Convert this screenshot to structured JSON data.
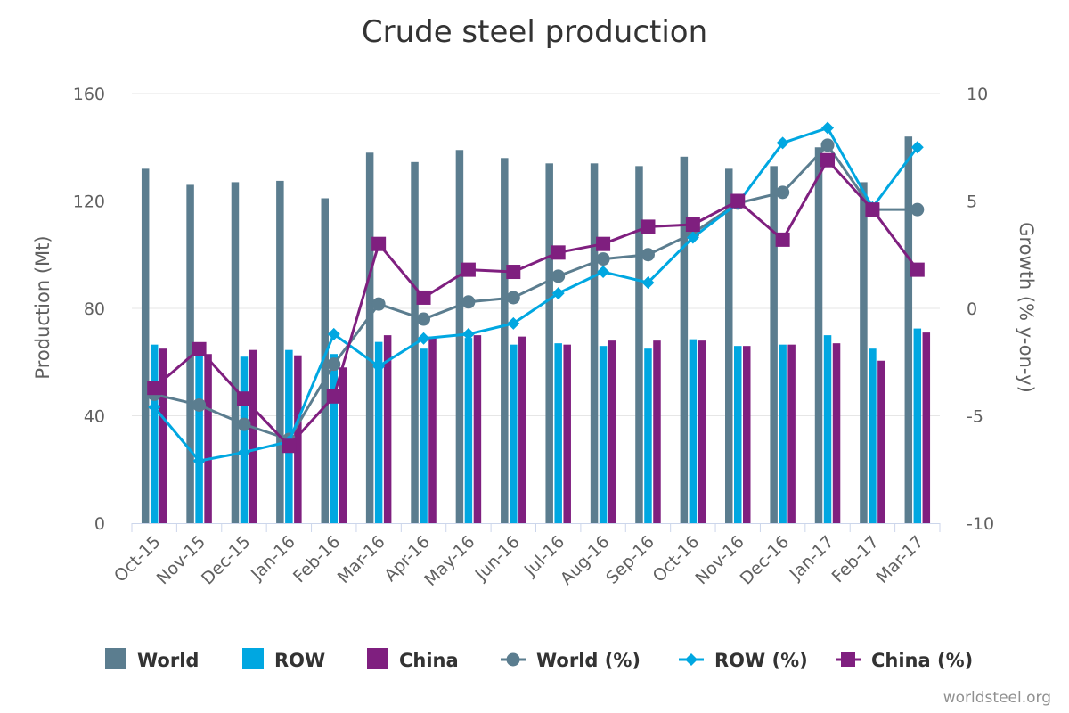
{
  "chart_data": {
    "type": "bar",
    "title": "Crude steel production",
    "categories": [
      "Oct-15",
      "Nov-15",
      "Dec-15",
      "Jan-16",
      "Feb-16",
      "Mar-16",
      "Apr-16",
      "May-16",
      "Jun-16",
      "Jul-16",
      "Aug-16",
      "Sep-16",
      "Oct-16",
      "Nov-16",
      "Dec-16",
      "Jan-17",
      "Feb-17",
      "Mar-17"
    ],
    "ylabel": "Production (Mt)",
    "ylim": [
      0,
      160
    ],
    "yticks": [
      0,
      40,
      80,
      120,
      160
    ],
    "y2label": "Growth (% y-on-y)",
    "y2lim": [
      -10,
      10
    ],
    "y2ticks": [
      -10,
      -5,
      0,
      5,
      10
    ],
    "grid": true,
    "legend_position": "bottom",
    "bar_series": [
      {
        "name": "World",
        "color": "#5b7d8f",
        "values": [
          132,
          126,
          127,
          127.5,
          121,
          138,
          134.5,
          139,
          136,
          134,
          134,
          133,
          136.5,
          132,
          133,
          140,
          127,
          144
        ]
      },
      {
        "name": "ROW",
        "color": "#00a7e1",
        "values": [
          66.5,
          63,
          62,
          64.5,
          63,
          67.5,
          65,
          69,
          66.5,
          67,
          66,
          65,
          68.5,
          66,
          66.5,
          70,
          65,
          72.5
        ]
      },
      {
        "name": "China",
        "color": "#7f1f7f",
        "values": [
          65,
          63,
          64.5,
          62.5,
          58,
          70,
          69.5,
          70,
          69.5,
          66.5,
          68,
          68,
          68,
          66,
          66.5,
          67,
          60.5,
          71
        ]
      }
    ],
    "line_series": [
      {
        "name": "World (%)",
        "color": "#5b7d8f",
        "marker": "circle",
        "values": [
          -4,
          -4.5,
          -5.4,
          -6.1,
          -2.6,
          0.2,
          -0.5,
          0.3,
          0.5,
          1.5,
          2.3,
          2.5,
          3.5,
          4.9,
          5.4,
          7.6,
          4.6,
          4.6
        ]
      },
      {
        "name": "ROW (%)",
        "color": "#00a7e1",
        "marker": "diamond",
        "values": [
          -4.6,
          -7.1,
          -6.7,
          -6.2,
          -1.2,
          -2.7,
          -1.4,
          -1.2,
          -0.7,
          0.7,
          1.7,
          1.2,
          3.3,
          4.9,
          7.7,
          8.4,
          4.7,
          7.5
        ]
      },
      {
        "name": "China (%)",
        "color": "#7f1f7f",
        "marker": "square",
        "values": [
          -3.7,
          -1.9,
          -4.2,
          -6.4,
          -4.1,
          3,
          0.5,
          1.8,
          1.7,
          2.6,
          3,
          3.8,
          3.9,
          5,
          3.2,
          6.9,
          4.6,
          1.8
        ]
      }
    ]
  },
  "credit": "worldsteel.org"
}
